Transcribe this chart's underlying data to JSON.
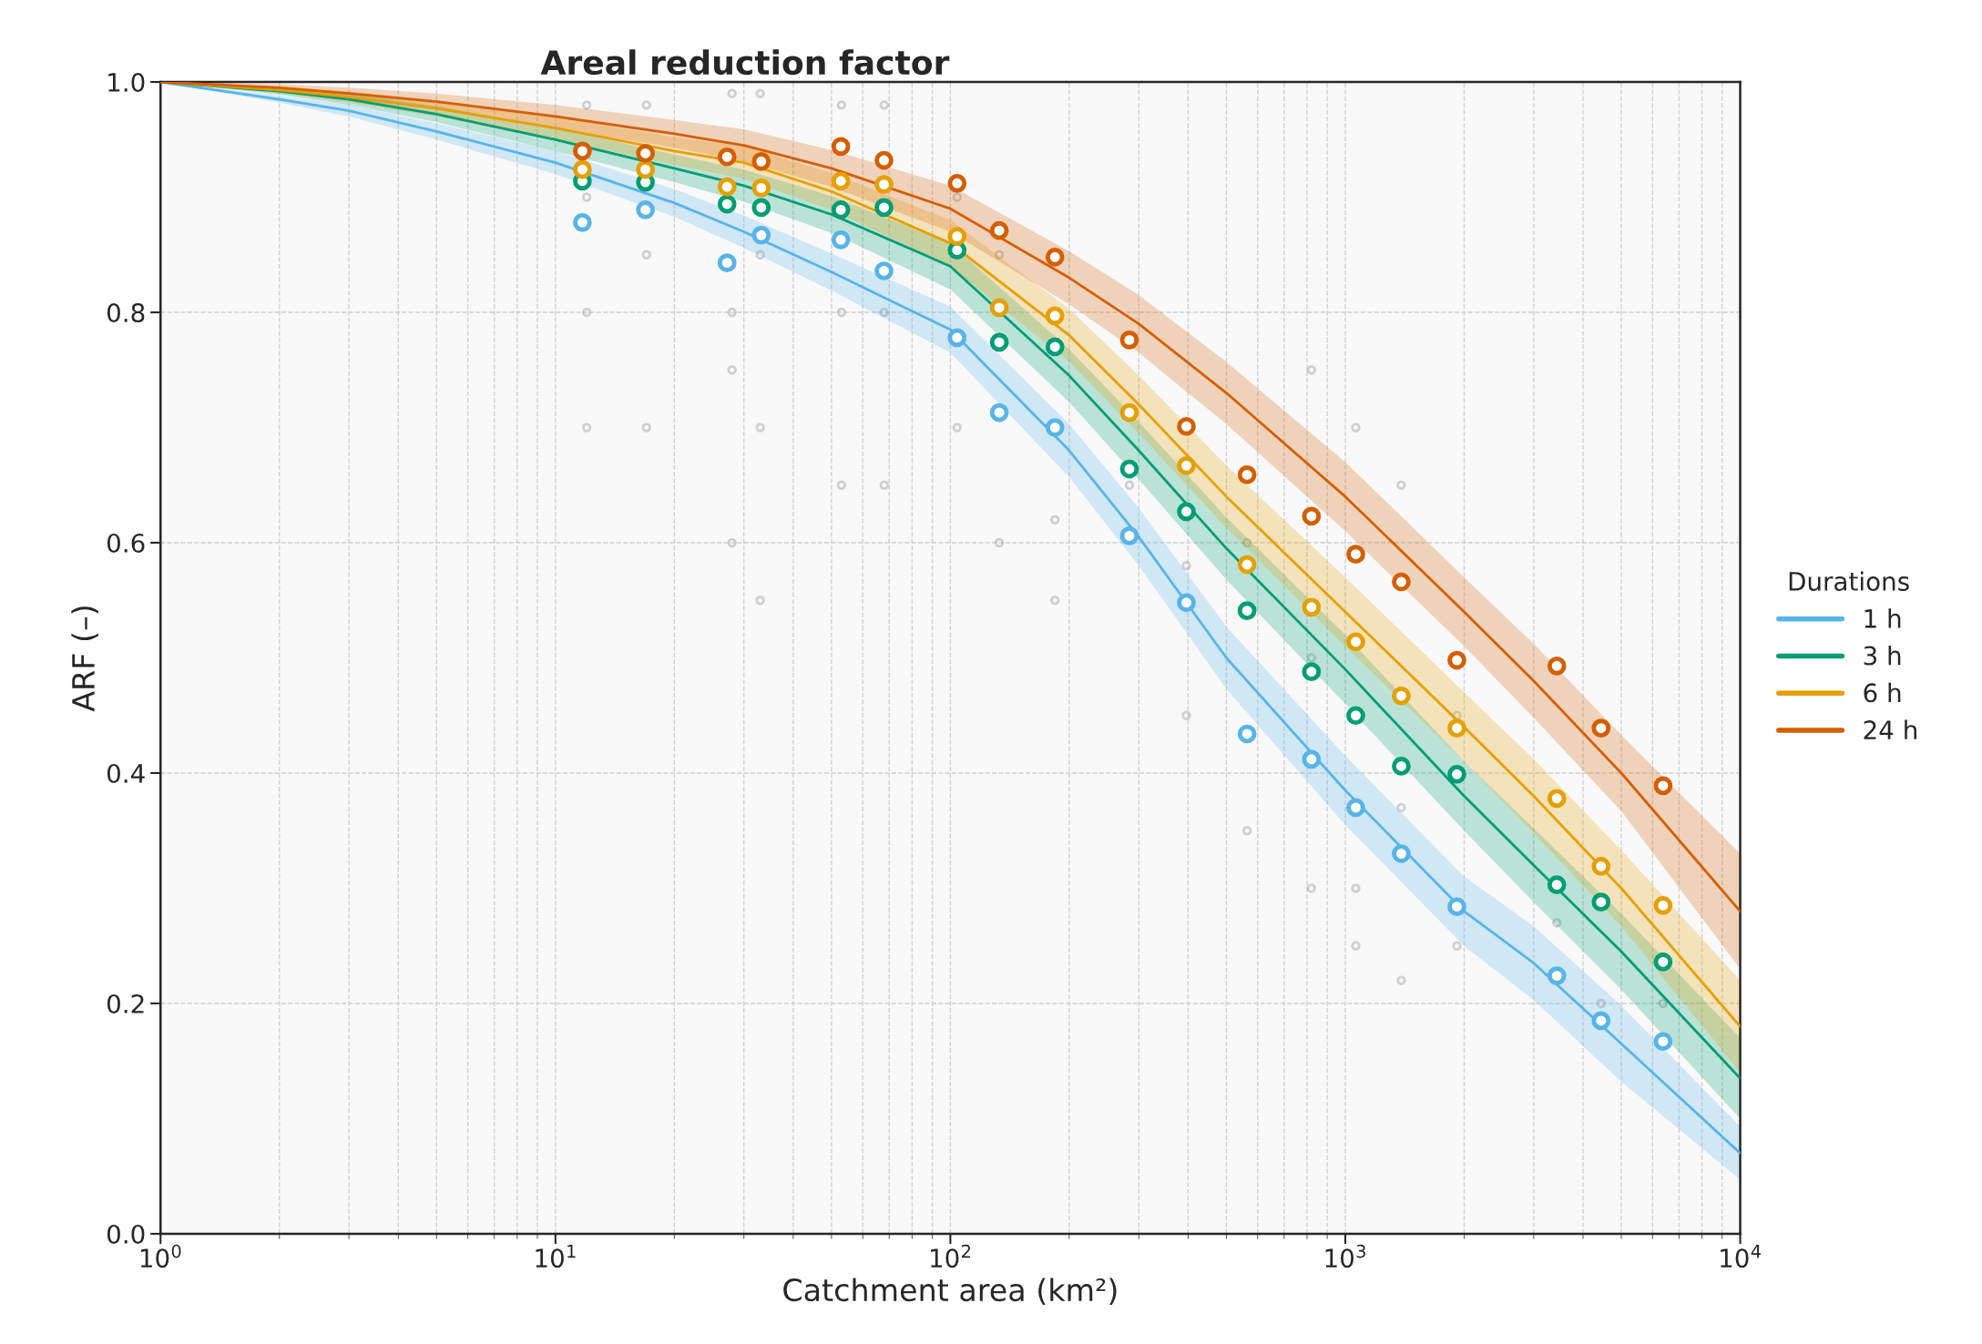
{
  "chart_data": {
    "type": "line",
    "title": "Areal reduction factor",
    "xlabel": "Catchment area (km²)",
    "ylabel": "ARF (–)",
    "legend_title": "Durations",
    "legend": "right",
    "grid": true,
    "log": "x",
    "xlim": [
      1,
      10000
    ],
    "ylim": [
      0.0,
      1.0
    ],
    "xticks": [
      {
        "value": 1,
        "label": "10$^{0}$"
      },
      {
        "value": 10,
        "label": "10$^{1}$"
      },
      {
        "value": 100,
        "label": "10$^{2}$"
      },
      {
        "value": 1000,
        "label": "10$^{3}$"
      },
      {
        "value": 10000,
        "label": "10$^{4}$"
      }
    ],
    "yticks": [
      {
        "value": 0,
        "label": "0.0"
      },
      {
        "value": 0.2,
        "label": "0.2"
      },
      {
        "value": 0.4,
        "label": "0.4"
      },
      {
        "value": 0.6,
        "label": "0.6"
      },
      {
        "value": 0.8,
        "label": "0.8"
      },
      {
        "value": 1,
        "label": "1.0"
      }
    ],
    "series": [
      {
        "type": "scatter",
        "color": "#808080",
        "marker": "circle",
        "x": [
          12,
          12,
          12,
          12,
          17,
          17,
          17,
          28,
          28,
          28,
          28,
          33,
          33,
          33,
          33,
          53,
          53,
          53,
          68,
          68,
          68,
          104,
          104,
          133,
          133,
          184,
          184,
          284,
          396,
          396,
          564,
          564,
          821,
          821,
          821,
          1063,
          1063,
          1063,
          1386,
          1386,
          1386,
          1917,
          1917,
          3433,
          4443,
          6378
        ],
        "values": [
          0.98,
          0.9,
          0.8,
          0.7,
          0.98,
          0.85,
          0.7,
          0.99,
          0.8,
          0.75,
          0.6,
          0.99,
          0.85,
          0.7,
          0.55,
          0.98,
          0.8,
          0.65,
          0.98,
          0.8,
          0.65,
          0.9,
          0.7,
          0.85,
          0.6,
          0.62,
          0.55,
          0.65,
          0.58,
          0.45,
          0.6,
          0.35,
          0.75,
          0.5,
          0.3,
          0.7,
          0.3,
          0.25,
          0.65,
          0.37,
          0.22,
          0.45,
          0.25,
          0.27,
          0.2,
          0.2
        ]
      },
      {
        "name": "1 h",
        "color": "#56b4e9",
        "x": [
          1,
          2,
          3,
          5,
          10,
          20,
          30,
          50,
          100,
          200,
          300,
          500,
          1000,
          2000,
          3000,
          5000,
          10000
        ],
        "values": [
          1.0,
          0.985,
          0.975,
          0.957,
          0.93,
          0.895,
          0.87,
          0.835,
          0.785,
          0.68,
          0.605,
          0.5,
          0.385,
          0.28,
          0.235,
          0.165,
          0.07
        ],
        "lower": [
          1.0,
          0.982,
          0.97,
          0.95,
          0.92,
          0.883,
          0.856,
          0.819,
          0.765,
          0.657,
          0.58,
          0.473,
          0.355,
          0.25,
          0.203,
          0.132,
          0.047
        ],
        "upper": [
          1.0,
          0.988,
          0.98,
          0.964,
          0.94,
          0.907,
          0.884,
          0.851,
          0.805,
          0.703,
          0.63,
          0.527,
          0.415,
          0.31,
          0.267,
          0.198,
          0.093
        ]
      },
      {
        "name": "3 h",
        "color": "#009e73",
        "x": [
          1,
          2,
          3,
          5,
          10,
          20,
          30,
          50,
          100,
          200,
          300,
          500,
          1000,
          2000,
          3000,
          5000,
          10000
        ],
        "values": [
          1.0,
          0.992,
          0.985,
          0.972,
          0.95,
          0.925,
          0.91,
          0.885,
          0.84,
          0.745,
          0.68,
          0.595,
          0.49,
          0.38,
          0.32,
          0.245,
          0.135
        ],
        "lower": [
          1.0,
          0.989,
          0.98,
          0.965,
          0.94,
          0.913,
          0.896,
          0.869,
          0.82,
          0.722,
          0.655,
          0.568,
          0.46,
          0.35,
          0.288,
          0.212,
          0.1
        ],
        "upper": [
          1.0,
          0.995,
          0.99,
          0.979,
          0.96,
          0.937,
          0.924,
          0.901,
          0.86,
          0.768,
          0.705,
          0.622,
          0.52,
          0.41,
          0.352,
          0.278,
          0.17
        ]
      },
      {
        "name": "6 h",
        "color": "#e69f00",
        "x": [
          1,
          2,
          3,
          5,
          10,
          20,
          30,
          50,
          100,
          200,
          300,
          500,
          1000,
          2000,
          3000,
          5000,
          10000
        ],
        "values": [
          1.0,
          0.993,
          0.987,
          0.977,
          0.96,
          0.94,
          0.93,
          0.905,
          0.86,
          0.78,
          0.72,
          0.64,
          0.54,
          0.44,
          0.38,
          0.3,
          0.18
        ],
        "lower": [
          1.0,
          0.99,
          0.982,
          0.97,
          0.95,
          0.928,
          0.916,
          0.889,
          0.84,
          0.757,
          0.695,
          0.613,
          0.51,
          0.41,
          0.348,
          0.267,
          0.14
        ],
        "upper": [
          1.0,
          0.996,
          0.992,
          0.984,
          0.97,
          0.952,
          0.944,
          0.921,
          0.88,
          0.803,
          0.745,
          0.667,
          0.57,
          0.47,
          0.412,
          0.333,
          0.22
        ]
      },
      {
        "name": "24 h",
        "color": "#d55e00",
        "x": [
          1,
          2,
          3,
          5,
          10,
          20,
          30,
          50,
          100,
          200,
          300,
          500,
          1000,
          2000,
          3000,
          5000,
          10000
        ],
        "values": [
          1.0,
          0.995,
          0.99,
          0.983,
          0.97,
          0.955,
          0.945,
          0.925,
          0.89,
          0.83,
          0.79,
          0.73,
          0.64,
          0.54,
          0.48,
          0.4,
          0.28
        ],
        "lower": [
          1.0,
          0.992,
          0.985,
          0.976,
          0.96,
          0.943,
          0.931,
          0.909,
          0.87,
          0.807,
          0.765,
          0.703,
          0.61,
          0.51,
          0.448,
          0.367,
          0.23
        ],
        "upper": [
          1.0,
          0.998,
          0.995,
          0.99,
          0.98,
          0.967,
          0.959,
          0.941,
          0.91,
          0.853,
          0.815,
          0.757,
          0.67,
          0.57,
          0.512,
          0.433,
          0.33
        ]
      },
      {
        "type": "scatter",
        "color": "#56b4e9",
        "marker": "circle",
        "x": [
          11.7,
          16.9,
          27.2,
          33.2,
          52.8,
          67.9,
          104,
          133,
          184,
          284,
          396,
          564,
          821,
          1063,
          1386,
          1917,
          3433,
          4443,
          6378
        ],
        "values": [
          0.878,
          0.889,
          0.843,
          0.867,
          0.863,
          0.836,
          0.778,
          0.713,
          0.7,
          0.606,
          0.548,
          0.434,
          0.412,
          0.37,
          0.33,
          0.284,
          0.224,
          0.185,
          0.167
        ]
      },
      {
        "type": "scatter",
        "color": "#009e73",
        "marker": "circle",
        "x": [
          11.7,
          16.9,
          27.2,
          33.2,
          52.8,
          67.9,
          104,
          133,
          184,
          284,
          396,
          564,
          821,
          1063,
          1386,
          1917,
          3433,
          4443,
          6378
        ],
        "values": [
          0.914,
          0.913,
          0.894,
          0.891,
          0.889,
          0.891,
          0.854,
          0.774,
          0.77,
          0.664,
          0.627,
          0.541,
          0.488,
          0.45,
          0.406,
          0.399,
          0.303,
          0.288,
          0.236
        ]
      },
      {
        "type": "scatter",
        "color": "#e69f00",
        "marker": "circle",
        "x": [
          11.7,
          16.9,
          27.2,
          33.2,
          52.8,
          67.9,
          104,
          133,
          184,
          284,
          396,
          564,
          821,
          1063,
          1386,
          1917,
          3433,
          4443,
          6378
        ],
        "values": [
          0.924,
          0.924,
          0.909,
          0.908,
          0.914,
          0.911,
          0.866,
          0.804,
          0.797,
          0.713,
          0.667,
          0.581,
          0.544,
          0.514,
          0.467,
          0.439,
          0.378,
          0.319,
          0.285
        ]
      },
      {
        "type": "scatter",
        "color": "#d55e00",
        "marker": "circle",
        "x": [
          11.7,
          16.9,
          27.2,
          33.2,
          52.8,
          67.9,
          104,
          133,
          184,
          284,
          396,
          564,
          821,
          1063,
          1386,
          1917,
          3433,
          4443,
          6378
        ],
        "values": [
          0.94,
          0.938,
          0.935,
          0.931,
          0.944,
          0.932,
          0.912,
          0.871,
          0.848,
          0.776,
          0.701,
          0.659,
          0.623,
          0.59,
          0.566,
          0.498,
          0.493,
          0.439,
          0.389
        ]
      }
    ]
  }
}
